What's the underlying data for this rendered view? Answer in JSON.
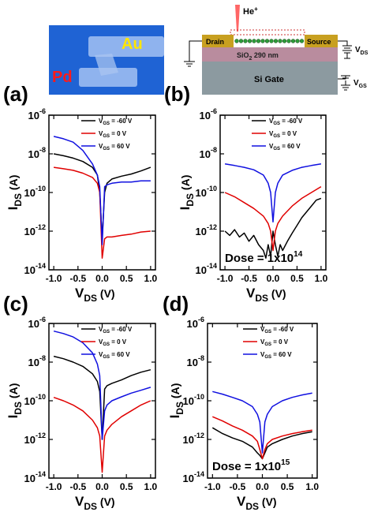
{
  "optical_image": {
    "label_au": "Au",
    "label_pd": "Pd",
    "colors": {
      "background": "#1f63d4",
      "au_electrode": "#8fb3ee",
      "pd_electrode": "#8fb3ee",
      "label_au": "#ffe600",
      "label_pd": "#ff1a1a"
    }
  },
  "schematic": {
    "beam_label": "He",
    "beam_sup": "+",
    "drain_label": "Drain",
    "source_label": "Source",
    "oxide_label_pre": "SiO",
    "oxide_sub": "2",
    "oxide_label_post": " 290 nm",
    "gate_label": "Si Gate",
    "vds_main": "V",
    "vds_sub": "DS",
    "vgs_main": "V",
    "vgs_sub": "GS",
    "colors": {
      "electrode": "#c8a020",
      "oxide": "#b98c9e",
      "gate": "#8c9aa0",
      "beam": "#ff6666",
      "graphene": "#2e9b3a"
    }
  },
  "panels": [
    {
      "letter": "(a)",
      "dose": null
    },
    {
      "letter": "(b)",
      "dose": {
        "text": "Dose = 1x10",
        "sup": "14"
      }
    },
    {
      "letter": "(c)",
      "dose": null
    },
    {
      "letter": "(d)",
      "dose": {
        "text": "Dose = 1x10",
        "sup": "15"
      }
    }
  ],
  "axis_text": {
    "y_main": "I",
    "y_sub": "DS",
    "y_unit": " (A)",
    "x_main": "V",
    "x_sub": "DS",
    "x_unit": " (V)",
    "x_ticks": [
      "-1.0",
      "-0.5",
      "0.0",
      "0.5",
      "1.0"
    ],
    "y_tick_base": "10",
    "y_tick_exps": [
      "-14",
      "-12",
      "-10",
      "-8",
      "-6"
    ]
  },
  "legend": [
    {
      "prefix": "V",
      "sub": "GS",
      "suffix": " = -60 V",
      "color": "#000000"
    },
    {
      "prefix": "V",
      "sub": "GS",
      "suffix": " = 0 V",
      "color": "#e00000"
    },
    {
      "prefix": "V",
      "sub": "GS",
      "suffix": " = 60 V",
      "color": "#1010e0"
    }
  ],
  "chart_data": [
    {
      "type": "line",
      "panel": "a",
      "xlim": [
        -1.1,
        1.1
      ],
      "ylim": [
        1e-14,
        1e-06
      ],
      "y_scale": "log",
      "series": [
        {
          "name": "VGS = -60 V",
          "color": "#000000",
          "x": [
            -1.0,
            -0.8,
            -0.6,
            -0.4,
            -0.2,
            -0.1,
            -0.05,
            0.0,
            0.05,
            0.1,
            0.2,
            0.4,
            0.6,
            0.8,
            1.0
          ],
          "y": [
            1e-08,
            8e-09,
            6e-09,
            4e-09,
            2e-09,
            8e-10,
            1e-10,
            4e-13,
            1e-10,
            3e-10,
            5e-10,
            7e-10,
            9e-10,
            1.3e-09,
            2e-09
          ]
        },
        {
          "name": "VGS = 0 V",
          "color": "#e00000",
          "x": [
            -1.0,
            -0.8,
            -0.6,
            -0.4,
            -0.2,
            -0.1,
            -0.05,
            0.0,
            0.05,
            0.1,
            0.2,
            0.4,
            0.6,
            0.8,
            1.0
          ],
          "y": [
            2e-09,
            1.7e-09,
            1.4e-09,
            1e-09,
            6e-10,
            3e-10,
            1e-10,
            4e-14,
            4e-13,
            5e-13,
            5e-13,
            6e-13,
            7e-13,
            9e-13,
            1e-12
          ]
        },
        {
          "name": "VGS = 60 V",
          "color": "#1010e0",
          "x": [
            -1.0,
            -0.8,
            -0.6,
            -0.4,
            -0.2,
            -0.1,
            -0.05,
            0.0,
            0.05,
            0.1,
            0.2,
            0.4,
            0.6,
            0.8,
            1.0
          ],
          "y": [
            8e-08,
            6e-08,
            4e-08,
            1.5e-08,
            3e-09,
            8e-10,
            2e-10,
            2e-13,
            2e-10,
            2.5e-10,
            3e-10,
            3.5e-10,
            3.5e-10,
            4e-10,
            4e-10
          ]
        }
      ]
    },
    {
      "type": "line",
      "panel": "b",
      "xlim": [
        -1.1,
        1.1
      ],
      "ylim": [
        1e-14,
        1e-06
      ],
      "y_scale": "log",
      "series": [
        {
          "name": "VGS = -60 V",
          "color": "#000000",
          "x": [
            -1.0,
            -0.9,
            -0.8,
            -0.7,
            -0.6,
            -0.5,
            -0.4,
            -0.3,
            -0.2,
            -0.15,
            -0.1,
            -0.05,
            0.0,
            0.05,
            0.1,
            0.15,
            0.2,
            0.3,
            0.4,
            0.5,
            0.6,
            0.7,
            0.8,
            0.9,
            1.0
          ],
          "y": [
            1e-12,
            6e-13,
            1.2e-12,
            5e-13,
            8e-13,
            3e-13,
            6e-13,
            2e-13,
            1e-13,
            4e-14,
            2e-13,
            5e-14,
            1e-12,
            2e-13,
            5e-14,
            2e-13,
            1e-13,
            3e-13,
            8e-13,
            2e-12,
            5e-12,
            1e-11,
            2e-11,
            4e-11,
            5e-11
          ]
        },
        {
          "name": "VGS = 0 V",
          "color": "#e00000",
          "x": [
            -1.0,
            -0.8,
            -0.6,
            -0.4,
            -0.2,
            -0.1,
            -0.05,
            0.0,
            0.05,
            0.1,
            0.2,
            0.4,
            0.6,
            0.8,
            1.0
          ],
          "y": [
            1e-10,
            6e-11,
            3e-11,
            1.5e-11,
            6e-12,
            2.5e-12,
            1e-12,
            1e-13,
            1e-12,
            2.5e-12,
            6e-12,
            2e-11,
            5e-11,
            1e-10,
            2e-10
          ]
        },
        {
          "name": "VGS = 60 V",
          "color": "#1010e0",
          "x": [
            -1.0,
            -0.8,
            -0.6,
            -0.4,
            -0.2,
            -0.1,
            -0.05,
            0.0,
            0.05,
            0.1,
            0.2,
            0.4,
            0.6,
            0.8,
            1.0
          ],
          "y": [
            3e-09,
            2.5e-09,
            2e-09,
            1.5e-09,
            8e-10,
            3e-10,
            1e-10,
            3e-12,
            1e-10,
            3e-10,
            8e-10,
            1.4e-09,
            2e-09,
            2.5e-09,
            3e-09
          ]
        }
      ]
    },
    {
      "type": "line",
      "panel": "c",
      "xlim": [
        -1.1,
        1.1
      ],
      "ylim": [
        1e-14,
        1e-06
      ],
      "y_scale": "log",
      "series": [
        {
          "name": "VGS = -60 V",
          "color": "#000000",
          "x": [
            -1.0,
            -0.8,
            -0.6,
            -0.4,
            -0.2,
            -0.1,
            -0.05,
            0.0,
            0.05,
            0.1,
            0.2,
            0.4,
            0.6,
            0.8,
            1.0
          ],
          "y": [
            2e-08,
            1.5e-08,
            1e-08,
            6e-09,
            2.5e-09,
            1e-09,
            3e-10,
            1e-12,
            4e-10,
            6e-10,
            8e-10,
            1.2e-09,
            2e-09,
            3e-09,
            4e-09
          ]
        },
        {
          "name": "VGS = 0 V",
          "color": "#e00000",
          "x": [
            -1.0,
            -0.8,
            -0.6,
            -0.4,
            -0.2,
            -0.1,
            -0.05,
            0.0,
            0.05,
            0.1,
            0.2,
            0.4,
            0.6,
            0.8,
            1.0
          ],
          "y": [
            1.5e-10,
            1e-10,
            6e-11,
            3e-11,
            1e-11,
            4e-12,
            1.5e-12,
            2e-14,
            1.5e-12,
            3e-12,
            6e-12,
            1.5e-11,
            3e-11,
            6e-11,
            1e-10
          ]
        },
        {
          "name": "VGS = 60 V",
          "color": "#1010e0",
          "x": [
            -1.0,
            -0.8,
            -0.6,
            -0.4,
            -0.2,
            -0.1,
            -0.05,
            0.0,
            0.05,
            0.1,
            0.2,
            0.4,
            0.6,
            0.8,
            1.0
          ],
          "y": [
            4e-07,
            3e-07,
            2e-07,
            1e-07,
            3e-08,
            8e-09,
            2e-09,
            1e-12,
            3e-11,
            6e-11,
            1e-10,
            1.6e-10,
            2.5e-10,
            3.5e-10,
            5e-10
          ]
        }
      ]
    },
    {
      "type": "line",
      "panel": "d",
      "xlim": [
        -1.1,
        1.1
      ],
      "ylim": [
        1e-14,
        1e-06
      ],
      "y_scale": "log",
      "series": [
        {
          "name": "VGS = -60 V",
          "color": "#000000",
          "x": [
            -1.0,
            -0.8,
            -0.6,
            -0.4,
            -0.2,
            -0.1,
            -0.05,
            0.0,
            0.05,
            0.1,
            0.2,
            0.4,
            0.6,
            0.8,
            1.0
          ],
          "y": [
            4e-12,
            2e-12,
            1.2e-12,
            8e-13,
            4e-13,
            2e-13,
            1.5e-13,
            1e-13,
            2e-13,
            4e-13,
            6e-13,
            1e-12,
            1.5e-12,
            2e-12,
            2.5e-12
          ]
        },
        {
          "name": "VGS = 0 V",
          "color": "#e00000",
          "x": [
            -1.0,
            -0.8,
            -0.6,
            -0.4,
            -0.2,
            -0.1,
            -0.05,
            0.0,
            0.05,
            0.1,
            0.2,
            0.4,
            0.6,
            0.8,
            1.0
          ],
          "y": [
            1.5e-11,
            9e-12,
            5e-12,
            3e-12,
            1.5e-12,
            8e-13,
            3e-13,
            1e-13,
            3e-13,
            6e-13,
            1e-12,
            1.5e-12,
            2e-12,
            2.5e-12,
            3e-12
          ]
        },
        {
          "name": "VGS = 60 V",
          "color": "#1010e0",
          "x": [
            -1.0,
            -0.8,
            -0.6,
            -0.4,
            -0.2,
            -0.1,
            -0.05,
            0.0,
            0.05,
            0.1,
            0.2,
            0.4,
            0.6,
            0.8,
            1.0
          ],
          "y": [
            3e-10,
            2.2e-10,
            1.5e-10,
            1e-10,
            5e-11,
            2e-11,
            8e-12,
            2e-13,
            8e-12,
            2e-11,
            5e-11,
            1e-10,
            1.5e-10,
            2e-10,
            2.5e-10
          ]
        }
      ]
    }
  ]
}
